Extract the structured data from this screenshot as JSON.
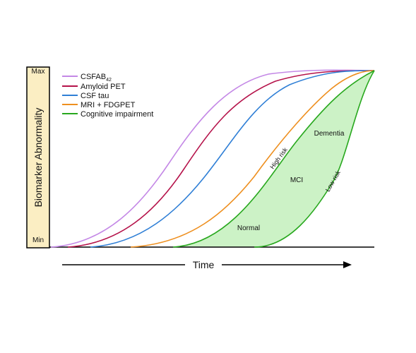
{
  "axis": {
    "y_label": "Biomarker Abnormality",
    "y_max": "Max",
    "y_min": "Min",
    "x_label": "Time"
  },
  "legend": [
    {
      "label": "CSFAB",
      "subscript": "42",
      "color": "#c488e6"
    },
    {
      "label": "Amyloid PET",
      "color": "#b5124a"
    },
    {
      "label": "CSF tau",
      "color": "#2f7fd6"
    },
    {
      "label": "MRI + FDGPET",
      "color": "#ee8f1f"
    },
    {
      "label": "Cognitive impairment",
      "color": "#28a81e"
    }
  ],
  "regions": {
    "normal": "Normal",
    "mci": "MCI",
    "dementia": "Dementia"
  },
  "curve_labels": {
    "high_risk": "High risk",
    "low_risk": "Low risk"
  },
  "colors": {
    "y_band_fill": "#fbeec3",
    "shaded_region": "#ccf2c6",
    "axis": "#000000"
  }
}
